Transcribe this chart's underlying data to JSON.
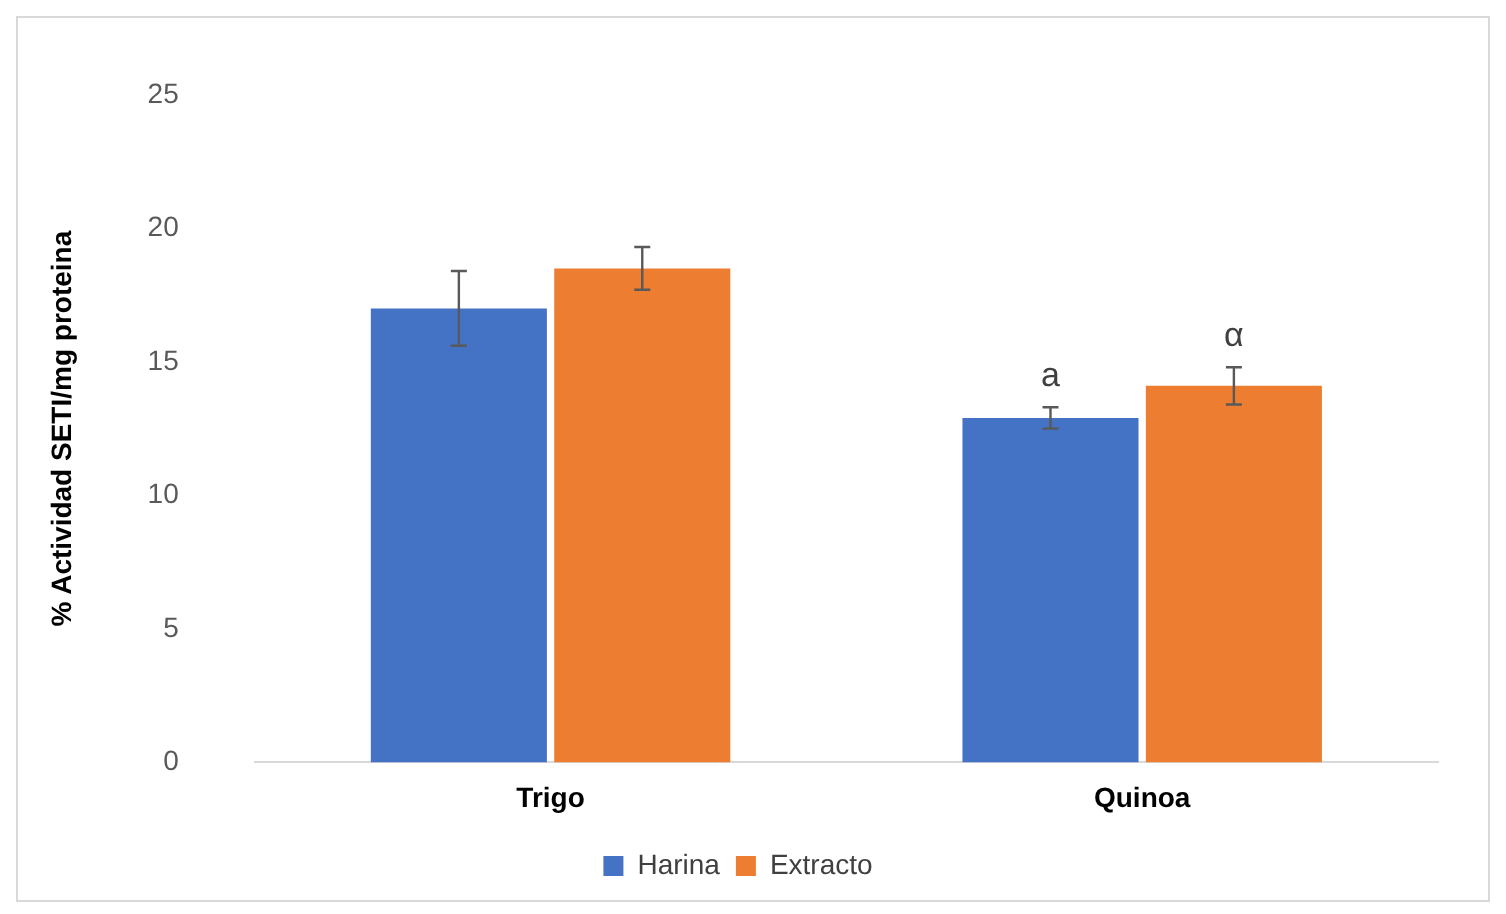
{
  "chart_data": {
    "type": "bar",
    "ylabel": "% Actividad SETI/mg proteina",
    "categories": [
      "Trigo",
      "Quinoa"
    ],
    "series": [
      {
        "name": "Harina",
        "color": "#4472c4",
        "values": [
          17.0,
          12.9
        ],
        "errors": [
          1.4,
          0.4
        ]
      },
      {
        "name": "Extracto",
        "color": "#ed7d31",
        "values": [
          18.5,
          14.1
        ],
        "errors": [
          0.8,
          0.7
        ]
      }
    ],
    "ylim": [
      0,
      25
    ],
    "yticks": [
      0,
      5,
      10,
      15,
      20,
      25
    ],
    "grid": false,
    "legend": "bottom",
    "annotations": [
      {
        "text": "a",
        "x": "Quinoa",
        "y": 12.9
      },
      {
        "text": "α",
        "x": "Quinoa",
        "y": 14.1
      }
    ]
  }
}
